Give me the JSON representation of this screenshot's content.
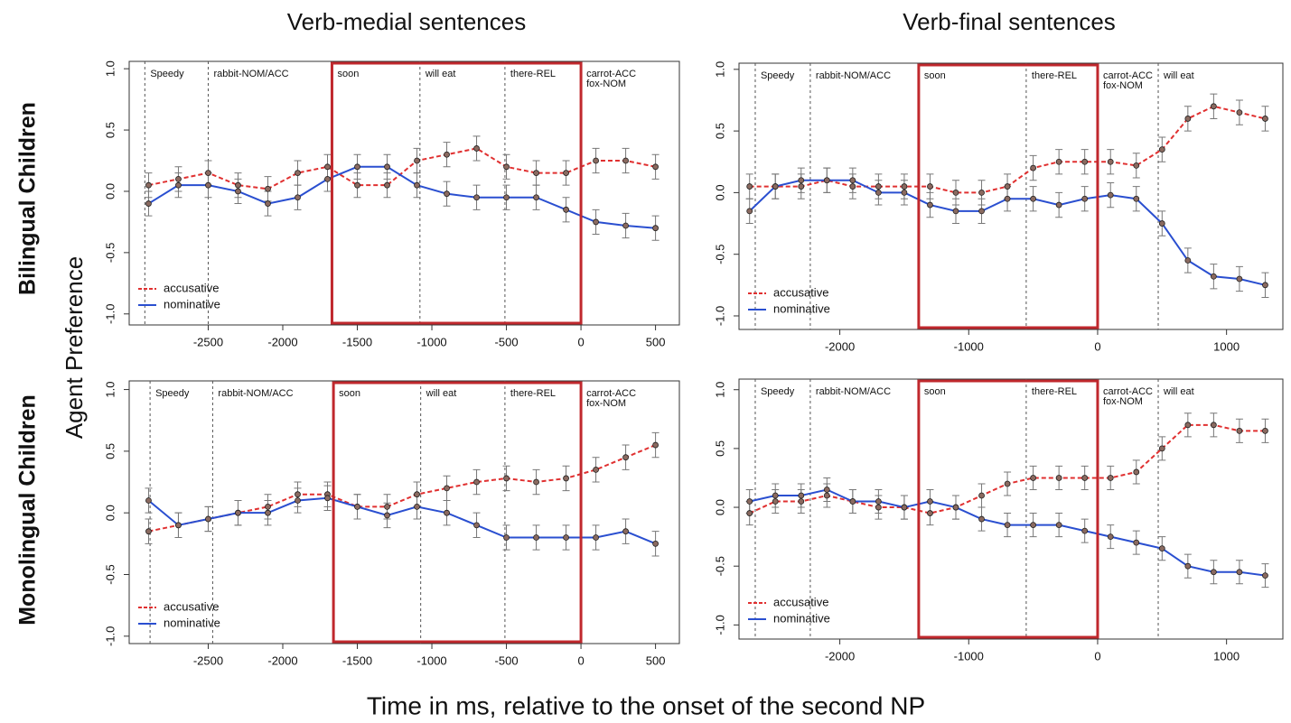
{
  "column_titles": [
    "Verb-medial sentences",
    "Verb-final sentences"
  ],
  "row_labels": [
    "Bilingual Children",
    "Monolingual Children"
  ],
  "y_label": "Agent Preference",
  "x_label": "Time in ms, relative to the onset of the second NP",
  "chart_data": [
    {
      "type": "line",
      "xlim": [
        -3030,
        660
      ],
      "ylim": [
        -1.09,
        1.06
      ],
      "xticks": [
        -2500,
        -2000,
        -1500,
        -1000,
        -500,
        0,
        500
      ],
      "yticks": [
        {
          "value": -1,
          "label": "-1.0"
        },
        -0.5,
        {
          "value": 0,
          "label": "0.0"
        },
        0.5,
        {
          "value": 1,
          "label": "1.0"
        }
      ],
      "markers": [
        {
          "x": -2925,
          "label": [
            "Speedy"
          ]
        },
        {
          "x": -2500,
          "label": [
            "rabbit-NOM/ACC"
          ]
        },
        {
          "x": -1670,
          "label": [
            "soon"
          ]
        },
        {
          "x": -1080,
          "label": [
            "will eat"
          ]
        },
        {
          "x": -510,
          "label": [
            "there-REL"
          ]
        },
        {
          "x": 0,
          "label": [
            "carrot-ACC",
            "fox-NOM"
          ]
        }
      ],
      "highlight": [
        -1670,
        0
      ],
      "legend": "bottom left",
      "x": [
        -2900,
        -2700,
        -2500,
        -2300,
        -2100,
        -1900,
        -1700,
        -1500,
        -1300,
        -1100,
        -900,
        -700,
        -500,
        -300,
        -100,
        100,
        300,
        500
      ],
      "series": [
        {
          "name": "accusative",
          "color": "#e03030",
          "line_style": "dashed",
          "error": 0.1,
          "values": [
            0.05,
            0.1,
            0.15,
            0.05,
            0.02,
            0.15,
            0.2,
            0.05,
            0.05,
            0.25,
            0.3,
            0.35,
            0.2,
            0.15,
            0.15,
            0.25,
            0.25,
            0.2
          ]
        },
        {
          "name": "nominative",
          "color": "#2a4fd0",
          "line_style": "solid",
          "error": 0.1,
          "values": [
            -0.1,
            0.05,
            0.05,
            0.0,
            -0.1,
            -0.05,
            0.1,
            0.2,
            0.2,
            0.05,
            -0.02,
            -0.05,
            -0.05,
            -0.05,
            -0.15,
            -0.25,
            -0.28,
            -0.3
          ]
        }
      ]
    },
    {
      "type": "line",
      "xlim": [
        -2782,
        1437
      ],
      "ylim": [
        -1.11,
        1.05
      ],
      "xticks": [
        -2000,
        -1000,
        0,
        1000
      ],
      "yticks": [
        {
          "value": -1,
          "label": "-1.0"
        },
        -0.5,
        {
          "value": 0,
          "label": "0.0"
        },
        0.5,
        {
          "value": 1,
          "label": "1.0"
        }
      ],
      "markers": [
        {
          "x": -2656,
          "label": [
            "Speedy"
          ]
        },
        {
          "x": -2229,
          "label": [
            "rabbit-NOM/ACC"
          ]
        },
        {
          "x": -1388,
          "label": [
            "soon"
          ]
        },
        {
          "x": -554,
          "label": [
            "there-REL"
          ]
        },
        {
          "x": 0,
          "label": [
            "carrot-ACC",
            "fox-NOM"
          ]
        },
        {
          "x": 470,
          "label": [
            "will eat"
          ]
        }
      ],
      "highlight": [
        -1388,
        0
      ],
      "legend": "bottom left",
      "x": [
        -2700,
        -2500,
        -2300,
        -2100,
        -1900,
        -1700,
        -1500,
        -1300,
        -1100,
        -900,
        -700,
        -500,
        -300,
        -100,
        100,
        300,
        500,
        700,
        900,
        1100,
        1300
      ],
      "series": [
        {
          "name": "accusative",
          "color": "#e03030",
          "line_style": "dashed",
          "error": 0.1,
          "values": [
            0.05,
            0.05,
            0.05,
            0.1,
            0.05,
            0.05,
            0.05,
            0.05,
            0.0,
            0.0,
            0.05,
            0.2,
            0.25,
            0.25,
            0.25,
            0.22,
            0.35,
            0.6,
            0.7,
            0.65,
            0.6
          ]
        },
        {
          "name": "nominative",
          "color": "#2a4fd0",
          "line_style": "solid",
          "error": 0.1,
          "values": [
            -0.15,
            0.05,
            0.1,
            0.1,
            0.1,
            0.0,
            0.0,
            -0.1,
            -0.15,
            -0.15,
            -0.05,
            -0.05,
            -0.1,
            -0.05,
            -0.02,
            -0.05,
            -0.25,
            -0.55,
            -0.68,
            -0.7,
            -0.75
          ]
        }
      ]
    },
    {
      "type": "line",
      "xlim": [
        -3030,
        660
      ],
      "ylim": [
        -1.06,
        1.07
      ],
      "xticks": [
        -2500,
        -2000,
        -1500,
        -1000,
        -500,
        0,
        500
      ],
      "yticks": [
        {
          "value": -1,
          "label": "-1.0"
        },
        -0.5,
        {
          "value": 0,
          "label": "0.0"
        },
        0.5,
        {
          "value": 1,
          "label": "1.0"
        }
      ],
      "markers": [
        {
          "x": -2890,
          "label": [
            "Speedy"
          ]
        },
        {
          "x": -2470,
          "label": [
            "rabbit-NOM/ACC"
          ]
        },
        {
          "x": -1660,
          "label": [
            "soon"
          ]
        },
        {
          "x": -1075,
          "label": [
            "will eat"
          ]
        },
        {
          "x": -510,
          "label": [
            "there-REL"
          ]
        },
        {
          "x": 0,
          "label": [
            "carrot-ACC",
            "fox-NOM"
          ]
        }
      ],
      "highlight": [
        -1660,
        0
      ],
      "legend": "bottom left",
      "x": [
        -2900,
        -2700,
        -2500,
        -2300,
        -2100,
        -1900,
        -1700,
        -1500,
        -1300,
        -1100,
        -900,
        -700,
        -500,
        -300,
        -100,
        100,
        300,
        500
      ],
      "series": [
        {
          "name": "accusative",
          "color": "#e03030",
          "line_style": "dashed",
          "error": 0.1,
          "values": [
            -0.15,
            -0.1,
            -0.05,
            0.0,
            0.05,
            0.15,
            0.15,
            0.05,
            0.05,
            0.15,
            0.2,
            0.25,
            0.28,
            0.25,
            0.28,
            0.35,
            0.45,
            0.55
          ]
        },
        {
          "name": "nominative",
          "color": "#2a4fd0",
          "line_style": "solid",
          "error": 0.1,
          "values": [
            0.1,
            -0.1,
            -0.05,
            0.0,
            0.0,
            0.1,
            0.12,
            0.05,
            -0.02,
            0.05,
            0.0,
            -0.1,
            -0.2,
            -0.2,
            -0.2,
            -0.2,
            -0.15,
            -0.25
          ]
        }
      ]
    },
    {
      "type": "line",
      "xlim": [
        -2782,
        1437
      ],
      "ylim": [
        -1.12,
        1.09
      ],
      "xticks": [
        -2000,
        -1000,
        0,
        1000
      ],
      "yticks": [
        {
          "value": -1,
          "label": "-1.0"
        },
        -0.5,
        {
          "value": 0,
          "label": "0.0"
        },
        0.5,
        {
          "value": 1,
          "label": "1.0"
        }
      ],
      "markers": [
        {
          "x": -2656,
          "label": [
            "Speedy"
          ]
        },
        {
          "x": -2229,
          "label": [
            "rabbit-NOM/ACC"
          ]
        },
        {
          "x": -1388,
          "label": [
            "soon"
          ]
        },
        {
          "x": -554,
          "label": [
            "there-REL"
          ]
        },
        {
          "x": 0,
          "label": [
            "carrot-ACC",
            "fox-NOM"
          ]
        },
        {
          "x": 470,
          "label": [
            "will eat"
          ]
        }
      ],
      "highlight": [
        -1388,
        0
      ],
      "legend": "bottom left",
      "x": [
        -2700,
        -2500,
        -2300,
        -2100,
        -1900,
        -1700,
        -1500,
        -1300,
        -1100,
        -900,
        -700,
        -500,
        -300,
        -100,
        100,
        300,
        500,
        700,
        900,
        1100,
        1300
      ],
      "series": [
        {
          "name": "accusative",
          "color": "#e03030",
          "line_style": "dashed",
          "error": 0.1,
          "values": [
            -0.05,
            0.05,
            0.05,
            0.1,
            0.05,
            0.0,
            0.0,
            -0.05,
            0.0,
            0.1,
            0.2,
            0.25,
            0.25,
            0.25,
            0.25,
            0.3,
            0.5,
            0.7,
            0.7,
            0.65,
            0.65
          ]
        },
        {
          "name": "nominative",
          "color": "#2a4fd0",
          "line_style": "solid",
          "error": 0.1,
          "values": [
            0.05,
            0.1,
            0.1,
            0.15,
            0.05,
            0.05,
            0.0,
            0.05,
            0.0,
            -0.1,
            -0.15,
            -0.15,
            -0.15,
            -0.2,
            -0.25,
            -0.3,
            -0.35,
            -0.5,
            -0.55,
            -0.55,
            -0.58
          ]
        }
      ]
    }
  ]
}
